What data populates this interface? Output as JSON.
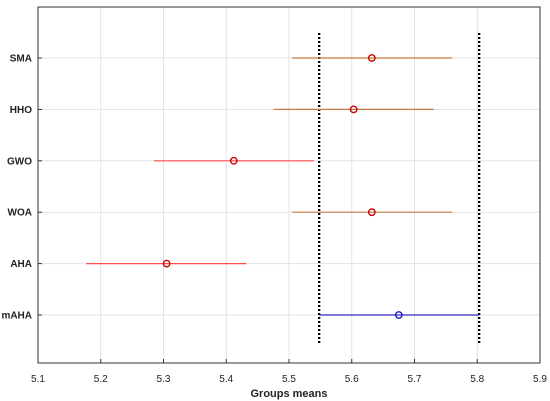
{
  "chart_data": {
    "type": "scatter",
    "subtype": "multiple-comparison-intervals",
    "xlabel": "Groups means",
    "ylabel": "",
    "title": "",
    "xlim": [
      5.1,
      5.9
    ],
    "x_ticks": [
      5.1,
      5.2,
      5.3,
      5.4,
      5.5,
      5.6,
      5.7,
      5.8,
      5.9
    ],
    "x_tick_labels": [
      "5.1",
      "5.2",
      "5.3",
      "5.4",
      "5.5",
      "5.6",
      "5.7",
      "5.8",
      "5.9"
    ],
    "grid": true,
    "groups": [
      {
        "name": "SMA",
        "mean": 5.632,
        "lower": 5.505,
        "upper": 5.76,
        "color": "#c87941"
      },
      {
        "name": "HHO",
        "mean": 5.603,
        "lower": 5.476,
        "upper": 5.731,
        "color": "#c87941"
      },
      {
        "name": "GWO",
        "mean": 5.412,
        "lower": 5.285,
        "upper": 5.54,
        "color": "#ff4d4d"
      },
      {
        "name": "WOA",
        "mean": 5.632,
        "lower": 5.505,
        "upper": 5.76,
        "color": "#c87941"
      },
      {
        "name": "AHA",
        "mean": 5.305,
        "lower": 5.177,
        "upper": 5.432,
        "color": "#ff4d4d"
      },
      {
        "name": "mAHA",
        "mean": 5.675,
        "lower": 5.548,
        "upper": 5.803,
        "color": "#2f2fbf"
      }
    ],
    "reference_lines": [
      5.548,
      5.803
    ],
    "reference_line_style": "dotted-black",
    "marker": "open-circle",
    "marker_edge_colors": {
      "blue": "#1a1ab0",
      "red": "#cc0000"
    }
  }
}
